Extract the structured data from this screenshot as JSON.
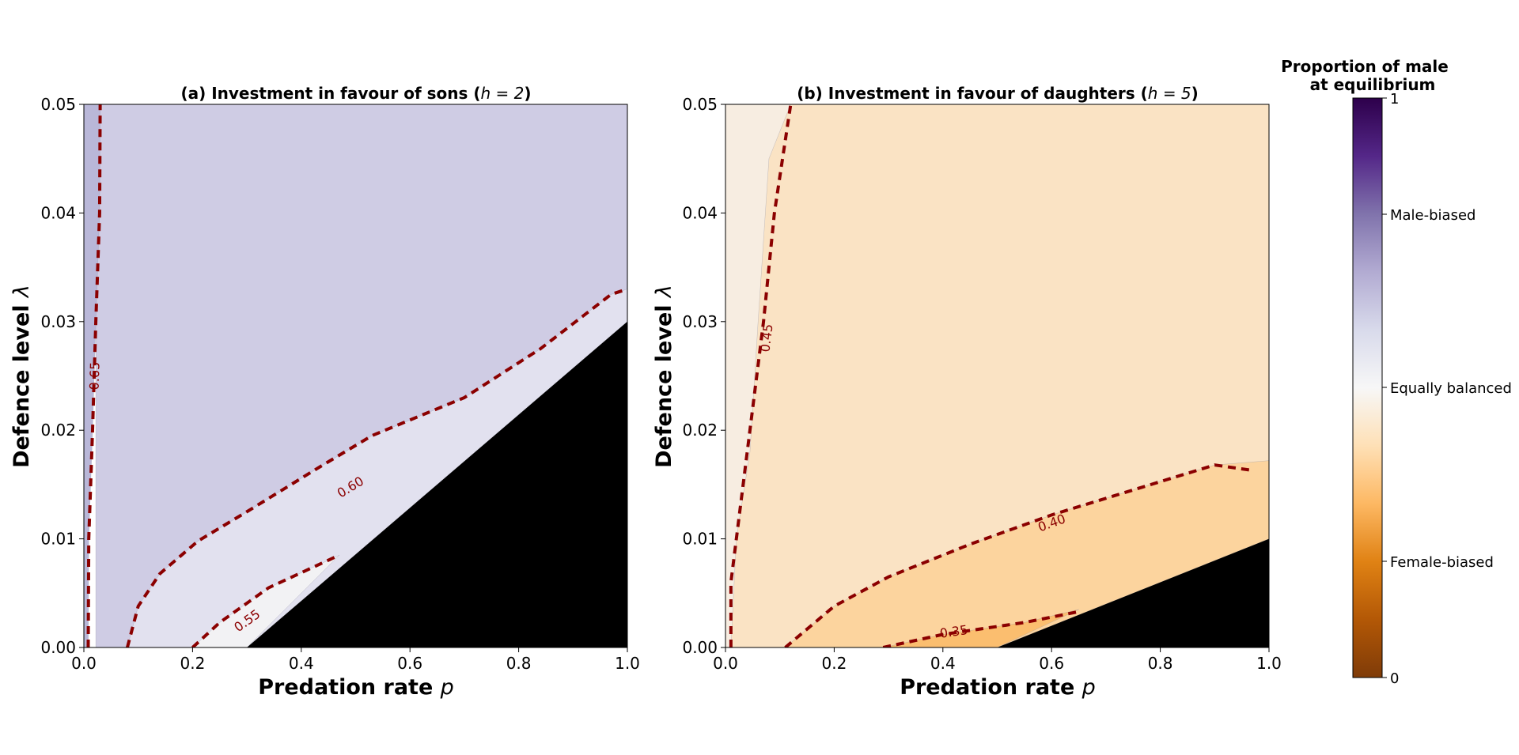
{
  "chart_data": [
    {
      "type": "contour",
      "title_prefix": "(a) Investment in favour of sons (",
      "title_math": "h = 2",
      "title_suffix": ")",
      "xlabel": "Predation rate ",
      "xlabel_math": "p",
      "ylabel": "Defence level ",
      "ylabel_math": "λ",
      "xlim": [
        0,
        1
      ],
      "ylim": [
        0,
        0.05
      ],
      "xticks": [
        "0.0",
        "0.2",
        "0.4",
        "0.6",
        "0.8",
        "1.0"
      ],
      "yticks": [
        "0.00",
        "0.01",
        "0.02",
        "0.03",
        "0.04",
        "0.05"
      ],
      "regions": [
        {
          "fill": "#cfcce4",
          "points": [
            [
              0.022,
              0
            ],
            [
              1,
              0
            ],
            [
              1,
              0.05
            ],
            [
              0.022,
              0.05
            ]
          ]
        },
        {
          "fill": "#b9b7d8",
          "points": [
            [
              0,
              0
            ],
            [
              0.008,
              0
            ],
            [
              0.009,
              0.01
            ],
            [
              0.016,
              0.02
            ],
            [
              0.022,
              0.03
            ],
            [
              0.029,
              0.04
            ],
            [
              0.03,
              0.05
            ],
            [
              0,
              0.05
            ]
          ]
        },
        {
          "fill": "#e2e1ef",
          "points": [
            [
              0.08,
              0
            ],
            [
              0.1,
              0.0038
            ],
            [
              0.14,
              0.0068
            ],
            [
              0.21,
              0.0098
            ],
            [
              0.3,
              0.0125
            ],
            [
              0.43,
              0.0165
            ],
            [
              0.53,
              0.0195
            ],
            [
              0.7,
              0.023
            ],
            [
              0.84,
              0.0275
            ],
            [
              0.97,
              0.0325
            ],
            [
              1,
              0.033
            ],
            [
              1,
              0.03
            ],
            [
              0.3,
              0
            ]
          ]
        },
        {
          "fill": "#f2f2f4",
          "points": [
            [
              0.2,
              0
            ],
            [
              0.25,
              0.0023
            ],
            [
              0.34,
              0.0055
            ],
            [
              0.47,
              0.0085
            ],
            [
              0.3,
              0
            ]
          ]
        },
        {
          "fill": "#000000",
          "points": [
            [
              0.3,
              0
            ],
            [
              1,
              0
            ],
            [
              1,
              0.03
            ]
          ]
        }
      ],
      "contours": [
        {
          "label": "0.65",
          "label_at": [
            0.019,
            0.025
          ],
          "points": [
            [
              0.008,
              0
            ],
            [
              0.009,
              0.01
            ],
            [
              0.016,
              0.02
            ],
            [
              0.022,
              0.03
            ],
            [
              0.029,
              0.04
            ],
            [
              0.03,
              0.05
            ]
          ]
        },
        {
          "label": "0.60",
          "label_at": [
            0.49,
            0.0148
          ],
          "points": [
            [
              0.08,
              0
            ],
            [
              0.1,
              0.0038
            ],
            [
              0.14,
              0.0068
            ],
            [
              0.21,
              0.0098
            ],
            [
              0.3,
              0.0125
            ],
            [
              0.43,
              0.0165
            ],
            [
              0.53,
              0.0195
            ],
            [
              0.7,
              0.023
            ],
            [
              0.84,
              0.0275
            ],
            [
              0.97,
              0.0325
            ],
            [
              1,
              0.033
            ]
          ]
        },
        {
          "label": "0.55",
          "label_at": [
            0.3,
            0.0025
          ],
          "points": [
            [
              0.2,
              0
            ],
            [
              0.25,
              0.0023
            ],
            [
              0.34,
              0.0055
            ],
            [
              0.47,
              0.0085
            ]
          ]
        }
      ]
    },
    {
      "type": "contour",
      "title_prefix": "(b) Investment in favour of daughters (",
      "title_math": "h = 5",
      "title_suffix": ")",
      "xlabel": "Predation rate ",
      "xlabel_math": "p",
      "ylabel": "Defence level ",
      "ylabel_math": "λ",
      "xlim": [
        0,
        1
      ],
      "ylim": [
        0,
        0.05
      ],
      "xticks": [
        "0.0",
        "0.2",
        "0.4",
        "0.6",
        "0.8",
        "1.0"
      ],
      "yticks": [
        "0.00",
        "0.01",
        "0.02",
        "0.03",
        "0.04",
        "0.05"
      ],
      "regions": [
        {
          "fill": "#f7ede1",
          "points": [
            [
              0,
              0
            ],
            [
              1,
              0
            ],
            [
              1,
              0.05
            ],
            [
              0,
              0.05
            ]
          ]
        },
        {
          "fill": "#fae3c4",
          "points": [
            [
              0.01,
              0
            ],
            [
              0.02,
              0.01
            ],
            [
              0.045,
              0.018
            ],
            [
              0.06,
              0.03
            ],
            [
              0.08,
              0.045
            ],
            [
              0.12,
              0.05
            ],
            [
              1,
              0.05
            ],
            [
              1,
              0
            ],
            [
              0.01,
              0
            ]
          ]
        },
        {
          "fill": "#fcd49e",
          "points": [
            [
              0.11,
              0
            ],
            [
              0.2,
              0.0038
            ],
            [
              0.3,
              0.0065
            ],
            [
              0.45,
              0.0095
            ],
            [
              0.6,
              0.0122
            ],
            [
              0.75,
              0.0145
            ],
            [
              0.9,
              0.0168
            ],
            [
              1,
              0.0172
            ],
            [
              1,
              0.01
            ],
            [
              0.5,
              0
            ],
            [
              0.11,
              0
            ]
          ]
        },
        {
          "fill": "#fbbe6f",
          "points": [
            [
              0.29,
              0
            ],
            [
              0.4,
              0.0012
            ],
            [
              0.55,
              0.0023
            ],
            [
              0.65,
              0.0035
            ],
            [
              0.5,
              0
            ]
          ]
        },
        {
          "fill": "#000000",
          "points": [
            [
              0.5,
              0
            ],
            [
              1,
              0
            ],
            [
              1,
              0.01
            ]
          ]
        }
      ],
      "contours": [
        {
          "label": "0.45",
          "label_at": [
            0.075,
            0.0285
          ],
          "points": [
            [
              0.01,
              0
            ],
            [
              0.01,
              0.006
            ],
            [
              0.02,
              0.01
            ],
            [
              0.04,
              0.018
            ],
            [
              0.05,
              0.022
            ],
            [
              0.07,
              0.03
            ],
            [
              0.09,
              0.04
            ],
            [
              0.12,
              0.05
            ]
          ]
        },
        {
          "label": "0.40",
          "label_at": [
            0.6,
            0.0115
          ],
          "points": [
            [
              0.11,
              0
            ],
            [
              0.2,
              0.0038
            ],
            [
              0.3,
              0.0065
            ],
            [
              0.45,
              0.0095
            ],
            [
              0.6,
              0.0122
            ],
            [
              0.75,
              0.0145
            ],
            [
              0.9,
              0.0168
            ],
            [
              0.97,
              0.0163
            ]
          ]
        },
        {
          "label": "0.35",
          "label_at": [
            0.42,
            0.0015
          ],
          "points": [
            [
              0.29,
              0
            ],
            [
              0.4,
              0.0012
            ],
            [
              0.55,
              0.0023
            ],
            [
              0.65,
              0.0033
            ]
          ]
        }
      ]
    }
  ],
  "colorbar": {
    "title_line1": "Proportion of male",
    "title_line2": "at equilibrium",
    "tick_max": "1",
    "tick_min": "0",
    "labels": [
      "Male-biased",
      "Equally balanced",
      "Female-biased"
    ],
    "gradient_colors": [
      "#2d004b",
      "#542788",
      "#8073ac",
      "#b2abd2",
      "#d8daeb",
      "#f7f7f7",
      "#fee0b6",
      "#fdb863",
      "#e08214",
      "#b35806",
      "#7f3b08"
    ]
  },
  "contour_color": "#8b0000"
}
